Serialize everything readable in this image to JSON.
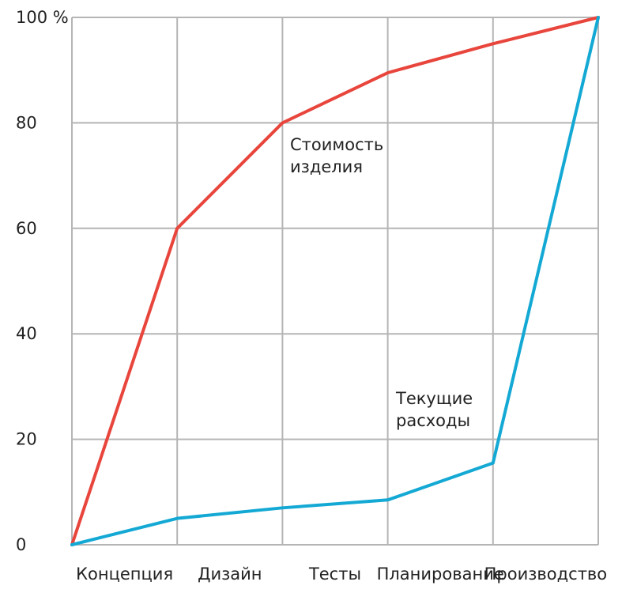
{
  "chart_data": {
    "type": "line",
    "categories": [
      "",
      "Концепция",
      "Дизайн",
      "Тесты",
      "Планирование",
      "Производство"
    ],
    "x_tick_labels": [
      "Концепция",
      "Дизайн",
      "Тесты",
      "Планирование",
      "Производство"
    ],
    "y_ticks": [
      0,
      20,
      40,
      60,
      80,
      100
    ],
    "y_tick_labels": [
      "0",
      "20",
      "40",
      "60",
      "80",
      "100 %"
    ],
    "ylim": [
      0,
      100
    ],
    "grid": true,
    "series": [
      {
        "name": "Стоимость изделия",
        "label_lines": [
          "Стоимость",
          "изделия"
        ],
        "color": "#e8453c",
        "values": [
          0,
          60,
          80,
          89.5,
          95,
          100
        ]
      },
      {
        "name": "Текущие расходы",
        "label_lines": [
          "Текущие",
          "расходы"
        ],
        "color": "#14a9d4",
        "values": [
          0,
          5,
          7,
          8.5,
          15.5,
          100
        ]
      }
    ]
  }
}
